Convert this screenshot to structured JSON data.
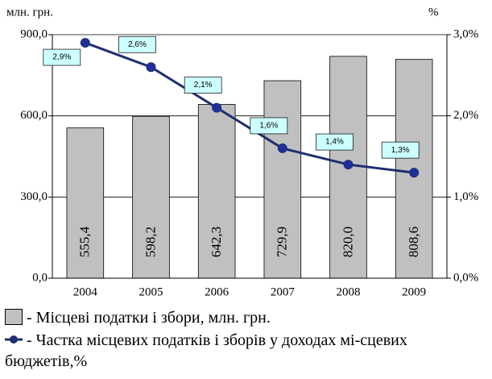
{
  "chart_data": {
    "type": "bar",
    "y_label": "млн. грн.",
    "y2_label": "%",
    "categories": [
      "2004",
      "2005",
      "2006",
      "2007",
      "2008",
      "2009"
    ],
    "series": [
      {
        "name": "- Місцеві податки і збори, млн. грн.",
        "color": "#c0c0c0",
        "values": [
          555.4,
          598.2,
          642.3,
          729.9,
          820.0,
          808.6
        ],
        "value_labels": [
          "555,4",
          "598,2",
          "642,3",
          "729,9",
          "820,0",
          "808,6"
        ]
      },
      {
        "name": "- Частка місцевих податків і зборів у доходах мі-сцевих бюджетів,%",
        "color": "#1f2f6e",
        "type": "line",
        "axis": "y2",
        "values": [
          2.9,
          2.6,
          2.1,
          1.6,
          1.4,
          1.3
        ],
        "value_labels": [
          "2,9%",
          "2,6%",
          "2,1%",
          "1,6%",
          "1,4%",
          "1,3%"
        ]
      }
    ],
    "ylim": [
      0,
      900
    ],
    "yticks": [
      {
        "value": 0,
        "label": "0,0"
      },
      {
        "value": 300,
        "label": "300,0"
      },
      {
        "value": 600,
        "label": "600,0"
      },
      {
        "value": 900,
        "label": "900,0"
      }
    ],
    "y2lim": [
      0,
      3
    ],
    "y2ticks": [
      {
        "value": 0,
        "label": "0,0%"
      },
      {
        "value": 1,
        "label": "1,0%"
      },
      {
        "value": 2,
        "label": "2,0%"
      },
      {
        "value": 3,
        "label": "3,0%"
      }
    ],
    "grid": true
  }
}
